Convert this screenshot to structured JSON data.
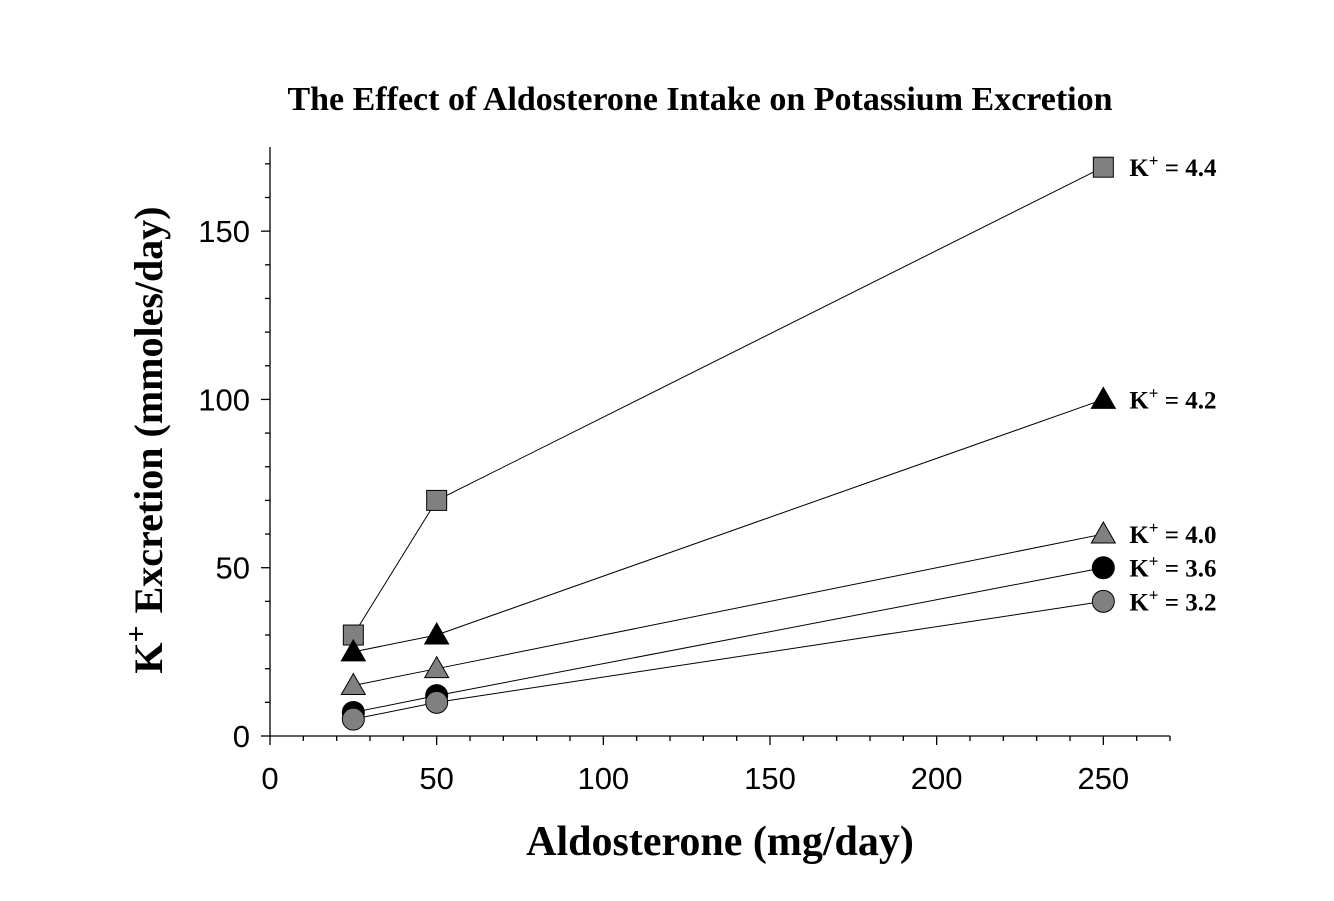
{
  "chart_data": {
    "type": "line",
    "title": "The Effect of Aldosterone Intake on Potassium Excretion",
    "xlabel": "Aldosterone (mg/day)",
    "ylabel": {
      "main": "K",
      "superscript": "+",
      "rest": "Excretion (mmoles/day)"
    },
    "xlim": [
      0,
      270
    ],
    "ylim": [
      0,
      175
    ],
    "xticks": [
      0,
      50,
      100,
      150,
      200,
      250
    ],
    "yticks": [
      0,
      50,
      100,
      150
    ],
    "x": [
      25,
      50,
      250
    ],
    "grid": false,
    "series": [
      {
        "name": "K+ = 4.4",
        "label_base": "K",
        "label_sup": "+",
        "label_value": " = 4.4",
        "values": [
          30,
          70,
          169
        ],
        "marker": "square",
        "color": "#808080"
      },
      {
        "name": "K+ = 4.2",
        "label_base": "K",
        "label_sup": "+",
        "label_value": " = 4.2",
        "values": [
          25,
          30,
          100
        ],
        "marker": "triangle",
        "color": "#000000"
      },
      {
        "name": "K+ = 4.0",
        "label_base": "K",
        "label_sup": "+",
        "label_value": " = 4.0",
        "values": [
          15,
          20,
          60
        ],
        "marker": "triangle",
        "color": "#808080"
      },
      {
        "name": "K+ = 3.6",
        "label_base": "K",
        "label_sup": "+",
        "label_value": " = 3.6",
        "values": [
          7,
          12,
          50
        ],
        "marker": "circle",
        "color": "#000000"
      },
      {
        "name": "K+ = 3.2",
        "label_base": "K",
        "label_sup": "+",
        "label_value": " = 3.2",
        "values": [
          5,
          10,
          40
        ],
        "marker": "circle",
        "color": "#808080"
      }
    ]
  }
}
